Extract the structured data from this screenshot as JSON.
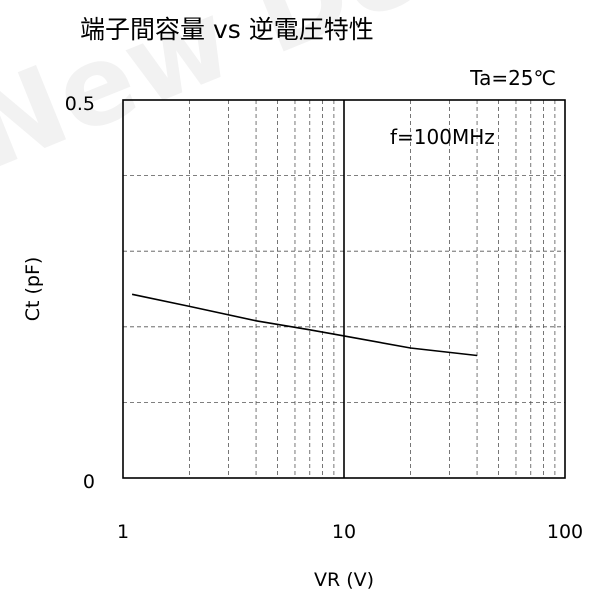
{
  "chart_data": {
    "type": "line",
    "title": "端子間容量 vs 逆電圧特性",
    "condition": "Ta=25℃",
    "annotation": "f=100MHz",
    "xlabel": "VR (V)",
    "ylabel": "Ct (pF)",
    "xscale": "log",
    "xlim": [
      1,
      100
    ],
    "ylim": [
      0,
      0.5
    ],
    "xticks": [
      1,
      10,
      100
    ],
    "xtick_labels": [
      "1",
      "10",
      "100"
    ],
    "yticks": [
      0,
      0.5
    ],
    "ytick_labels": [
      "0",
      "0.5"
    ],
    "grid": true,
    "watermark": "New De",
    "series": [
      {
        "x": [
          1.1,
          2,
          4,
          7,
          10,
          20,
          40
        ],
        "y": [
          0.243,
          0.227,
          0.208,
          0.196,
          0.188,
          0.172,
          0.162
        ]
      }
    ]
  }
}
